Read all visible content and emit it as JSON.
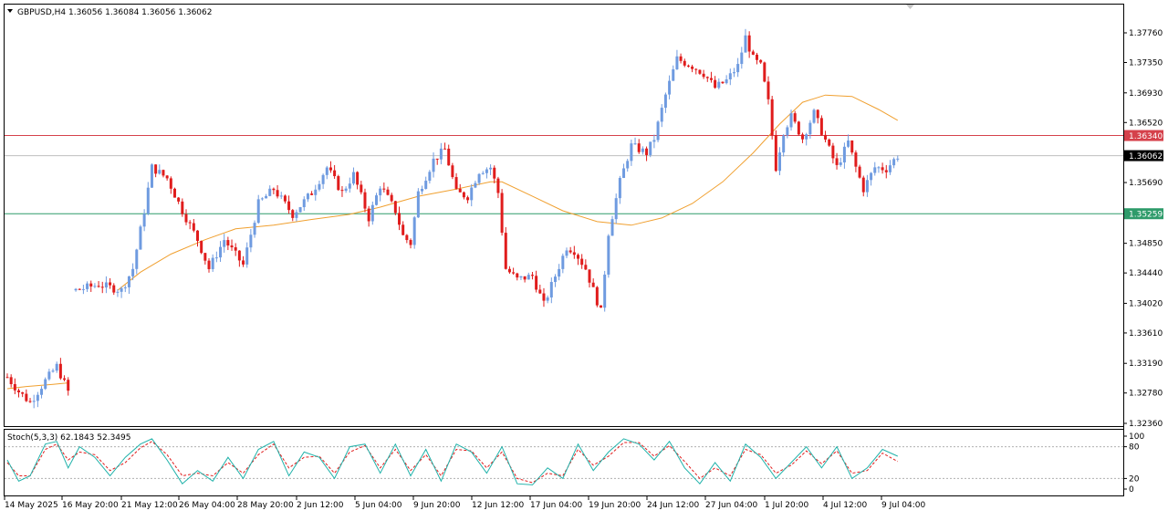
{
  "window": {
    "symbol_header": "GBPUSD,H4  1.36056 1.36084 1.36056 1.36062",
    "indicator_header": "Stoch(5,3,3) 62.1843 52.3495"
  },
  "colors": {
    "bull": "#6f9be0",
    "bear": "#e01c1c",
    "ma": "#f0a030",
    "resistance": "#d5414b",
    "support": "#2e9b6a",
    "current": "#bfbfbf",
    "stoch_main": "#20b2aa",
    "stoch_signal": "#e01c1c",
    "grid_frame": "#000000"
  },
  "chart_data": [
    {
      "type": "candlestick",
      "title": "GBPUSD,H4",
      "ylim": [
        1.3236,
        1.3797
      ],
      "price_ticks": [
        "1.37760",
        "1.37350",
        "1.36930",
        "1.36520",
        "1.35690",
        "1.34850",
        "1.34440",
        "1.34020",
        "1.33610",
        "1.33190",
        "1.32780",
        "1.32360"
      ],
      "x_ticks": [
        "14 May 2025",
        "16 May 20:00",
        "21 May 12:00",
        "26 May 04:00",
        "28 May 20:00",
        "2 Jun 12:00",
        "5 Jun 04:00",
        "9 Jun 20:00",
        "12 Jun 12:00",
        "17 Jun 04:00",
        "19 Jun 20:00",
        "24 Jun 12:00",
        "27 Jun 04:00",
        "1 Jul 20:00",
        "4 Jul 12:00",
        "9 Jul 04:00"
      ],
      "anchors": [
        {
          "i": 0,
          "p": 1.33
        },
        {
          "i": 3,
          "p": 1.328
        },
        {
          "i": 6,
          "p": 1.3265
        },
        {
          "i": 10,
          "p": 1.3295
        },
        {
          "i": 13,
          "p": 1.3315
        },
        {
          "i": 16,
          "p": 1.328
        },
        {
          "i": 18,
          "p": 1.342
        },
        {
          "i": 24,
          "p": 1.3428
        },
        {
          "i": 30,
          "p": 1.342
        },
        {
          "i": 33,
          "p": 1.345
        },
        {
          "i": 36,
          "p": 1.353
        },
        {
          "i": 38,
          "p": 1.359
        },
        {
          "i": 42,
          "p": 1.3575
        },
        {
          "i": 46,
          "p": 1.353
        },
        {
          "i": 50,
          "p": 1.349
        },
        {
          "i": 53,
          "p": 1.345
        },
        {
          "i": 57,
          "p": 1.349
        },
        {
          "i": 62,
          "p": 1.3455
        },
        {
          "i": 66,
          "p": 1.354
        },
        {
          "i": 70,
          "p": 1.356
        },
        {
          "i": 75,
          "p": 1.3525
        },
        {
          "i": 80,
          "p": 1.3555
        },
        {
          "i": 84,
          "p": 1.359
        },
        {
          "i": 88,
          "p": 1.3555
        },
        {
          "i": 91,
          "p": 1.358
        },
        {
          "i": 95,
          "p": 1.352
        },
        {
          "i": 98,
          "p": 1.3565
        },
        {
          "i": 102,
          "p": 1.353
        },
        {
          "i": 104,
          "p": 1.3495
        },
        {
          "i": 106,
          "p": 1.3485
        },
        {
          "i": 108,
          "p": 1.3555
        },
        {
          "i": 112,
          "p": 1.36
        },
        {
          "i": 115,
          "p": 1.3615
        },
        {
          "i": 118,
          "p": 1.3555
        },
        {
          "i": 121,
          "p": 1.355
        },
        {
          "i": 124,
          "p": 1.3585
        },
        {
          "i": 127,
          "p": 1.359
        },
        {
          "i": 129,
          "p": 1.3555
        },
        {
          "i": 131,
          "p": 1.345
        },
        {
          "i": 134,
          "p": 1.3435
        },
        {
          "i": 138,
          "p": 1.344
        },
        {
          "i": 141,
          "p": 1.34
        },
        {
          "i": 144,
          "p": 1.344
        },
        {
          "i": 147,
          "p": 1.348
        },
        {
          "i": 149,
          "p": 1.3475
        },
        {
          "i": 152,
          "p": 1.345
        },
        {
          "i": 154,
          "p": 1.342
        },
        {
          "i": 156,
          "p": 1.339
        },
        {
          "i": 158,
          "p": 1.35
        },
        {
          "i": 161,
          "p": 1.357
        },
        {
          "i": 164,
          "p": 1.362
        },
        {
          "i": 168,
          "p": 1.361
        },
        {
          "i": 170,
          "p": 1.363
        },
        {
          "i": 173,
          "p": 1.369
        },
        {
          "i": 176,
          "p": 1.374
        },
        {
          "i": 180,
          "p": 1.373
        },
        {
          "i": 183,
          "p": 1.372
        },
        {
          "i": 186,
          "p": 1.37
        },
        {
          "i": 189,
          "p": 1.371
        },
        {
          "i": 192,
          "p": 1.373
        },
        {
          "i": 194,
          "p": 1.377
        },
        {
          "i": 196,
          "p": 1.374
        },
        {
          "i": 198,
          "p": 1.373
        },
        {
          "i": 200,
          "p": 1.368
        },
        {
          "i": 202,
          "p": 1.359
        },
        {
          "i": 204,
          "p": 1.364
        },
        {
          "i": 206,
          "p": 1.366
        },
        {
          "i": 209,
          "p": 1.363
        },
        {
          "i": 212,
          "p": 1.3665
        },
        {
          "i": 214,
          "p": 1.364
        },
        {
          "i": 216,
          "p": 1.3615
        },
        {
          "i": 218,
          "p": 1.359
        },
        {
          "i": 221,
          "p": 1.3625
        },
        {
          "i": 223,
          "p": 1.359
        },
        {
          "i": 225,
          "p": 1.356
        },
        {
          "i": 228,
          "p": 1.359
        },
        {
          "i": 231,
          "p": 1.3588
        },
        {
          "i": 234,
          "p": 1.3606
        }
      ],
      "moving_average": [
        [
          1.3284,
          0
        ],
        [
          1.3287,
          5
        ],
        [
          1.329,
          12
        ],
        [
          1.3292,
          16
        ],
        [
          1.342,
          29
        ],
        [
          1.3445,
          35
        ],
        [
          1.347,
          43
        ],
        [
          1.349,
          52
        ],
        [
          1.3505,
          60
        ],
        [
          1.351,
          70
        ],
        [
          1.3518,
          80
        ],
        [
          1.3525,
          90
        ],
        [
          1.3535,
          98
        ],
        [
          1.355,
          108
        ],
        [
          1.356,
          118
        ],
        [
          1.357,
          127
        ],
        [
          1.357,
          130
        ],
        [
          1.355,
          138
        ],
        [
          1.353,
          146
        ],
        [
          1.3515,
          155
        ],
        [
          1.351,
          164
        ],
        [
          1.352,
          172
        ],
        [
          1.354,
          180
        ],
        [
          1.357,
          188
        ],
        [
          1.361,
          196
        ],
        [
          1.365,
          203
        ],
        [
          1.368,
          209
        ],
        [
          1.369,
          215
        ],
        [
          1.3688,
          222
        ],
        [
          1.367,
          229
        ],
        [
          1.3655,
          234
        ]
      ],
      "levels": [
        {
          "label": "1.36340",
          "value": 1.3634,
          "color_key": "resistance"
        },
        {
          "label": "1.36062",
          "value": 1.36062,
          "color_key": "current"
        },
        {
          "label": "1.35259",
          "value": 1.35259,
          "color_key": "support"
        }
      ]
    },
    {
      "type": "line",
      "title": "Stoch(5,3,3)",
      "ylim": [
        0,
        100
      ],
      "levels": [
        80,
        20
      ],
      "y_ticks": [
        "100",
        "80",
        "20",
        "0"
      ],
      "main_anchors": [
        [
          0,
          55
        ],
        [
          3,
          15
        ],
        [
          6,
          25
        ],
        [
          10,
          85
        ],
        [
          13,
          90
        ],
        [
          16,
          40
        ],
        [
          19,
          80
        ],
        [
          23,
          60
        ],
        [
          27,
          25
        ],
        [
          31,
          60
        ],
        [
          35,
          85
        ],
        [
          38,
          95
        ],
        [
          42,
          55
        ],
        [
          46,
          10
        ],
        [
          50,
          35
        ],
        [
          54,
          15
        ],
        [
          58,
          60
        ],
        [
          62,
          20
        ],
        [
          66,
          75
        ],
        [
          70,
          90
        ],
        [
          74,
          25
        ],
        [
          78,
          70
        ],
        [
          82,
          60
        ],
        [
          86,
          20
        ],
        [
          90,
          80
        ],
        [
          94,
          85
        ],
        [
          98,
          30
        ],
        [
          102,
          85
        ],
        [
          106,
          25
        ],
        [
          110,
          75
        ],
        [
          114,
          15
        ],
        [
          118,
          85
        ],
        [
          122,
          70
        ],
        [
          126,
          30
        ],
        [
          130,
          80
        ],
        [
          134,
          10
        ],
        [
          138,
          8
        ],
        [
          142,
          40
        ],
        [
          146,
          20
        ],
        [
          150,
          85
        ],
        [
          154,
          35
        ],
        [
          158,
          70
        ],
        [
          162,
          95
        ],
        [
          166,
          85
        ],
        [
          170,
          55
        ],
        [
          174,
          90
        ],
        [
          178,
          40
        ],
        [
          182,
          10
        ],
        [
          186,
          50
        ],
        [
          190,
          15
        ],
        [
          194,
          85
        ],
        [
          198,
          60
        ],
        [
          202,
          20
        ],
        [
          206,
          50
        ],
        [
          210,
          80
        ],
        [
          214,
          40
        ],
        [
          218,
          80
        ],
        [
          222,
          20
        ],
        [
          226,
          40
        ],
        [
          230,
          75
        ],
        [
          234,
          62
        ]
      ],
      "signal_anchors": [
        [
          0,
          50
        ],
        [
          3,
          25
        ],
        [
          6,
          25
        ],
        [
          10,
          75
        ],
        [
          13,
          85
        ],
        [
          16,
          55
        ],
        [
          19,
          70
        ],
        [
          23,
          65
        ],
        [
          27,
          35
        ],
        [
          31,
          50
        ],
        [
          35,
          78
        ],
        [
          38,
          90
        ],
        [
          42,
          65
        ],
        [
          46,
          25
        ],
        [
          50,
          30
        ],
        [
          54,
          25
        ],
        [
          58,
          50
        ],
        [
          62,
          30
        ],
        [
          66,
          65
        ],
        [
          70,
          85
        ],
        [
          74,
          40
        ],
        [
          78,
          60
        ],
        [
          82,
          62
        ],
        [
          86,
          30
        ],
        [
          90,
          70
        ],
        [
          94,
          82
        ],
        [
          98,
          40
        ],
        [
          102,
          75
        ],
        [
          106,
          35
        ],
        [
          110,
          65
        ],
        [
          114,
          25
        ],
        [
          118,
          75
        ],
        [
          122,
          72
        ],
        [
          126,
          40
        ],
        [
          130,
          70
        ],
        [
          134,
          20
        ],
        [
          138,
          12
        ],
        [
          142,
          30
        ],
        [
          146,
          25
        ],
        [
          150,
          75
        ],
        [
          154,
          45
        ],
        [
          158,
          62
        ],
        [
          162,
          88
        ],
        [
          166,
          88
        ],
        [
          170,
          62
        ],
        [
          174,
          82
        ],
        [
          178,
          52
        ],
        [
          182,
          20
        ],
        [
          186,
          40
        ],
        [
          190,
          25
        ],
        [
          194,
          75
        ],
        [
          198,
          65
        ],
        [
          202,
          30
        ],
        [
          206,
          45
        ],
        [
          210,
          72
        ],
        [
          214,
          48
        ],
        [
          218,
          72
        ],
        [
          222,
          30
        ],
        [
          226,
          35
        ],
        [
          230,
          68
        ],
        [
          234,
          52
        ]
      ]
    }
  ]
}
